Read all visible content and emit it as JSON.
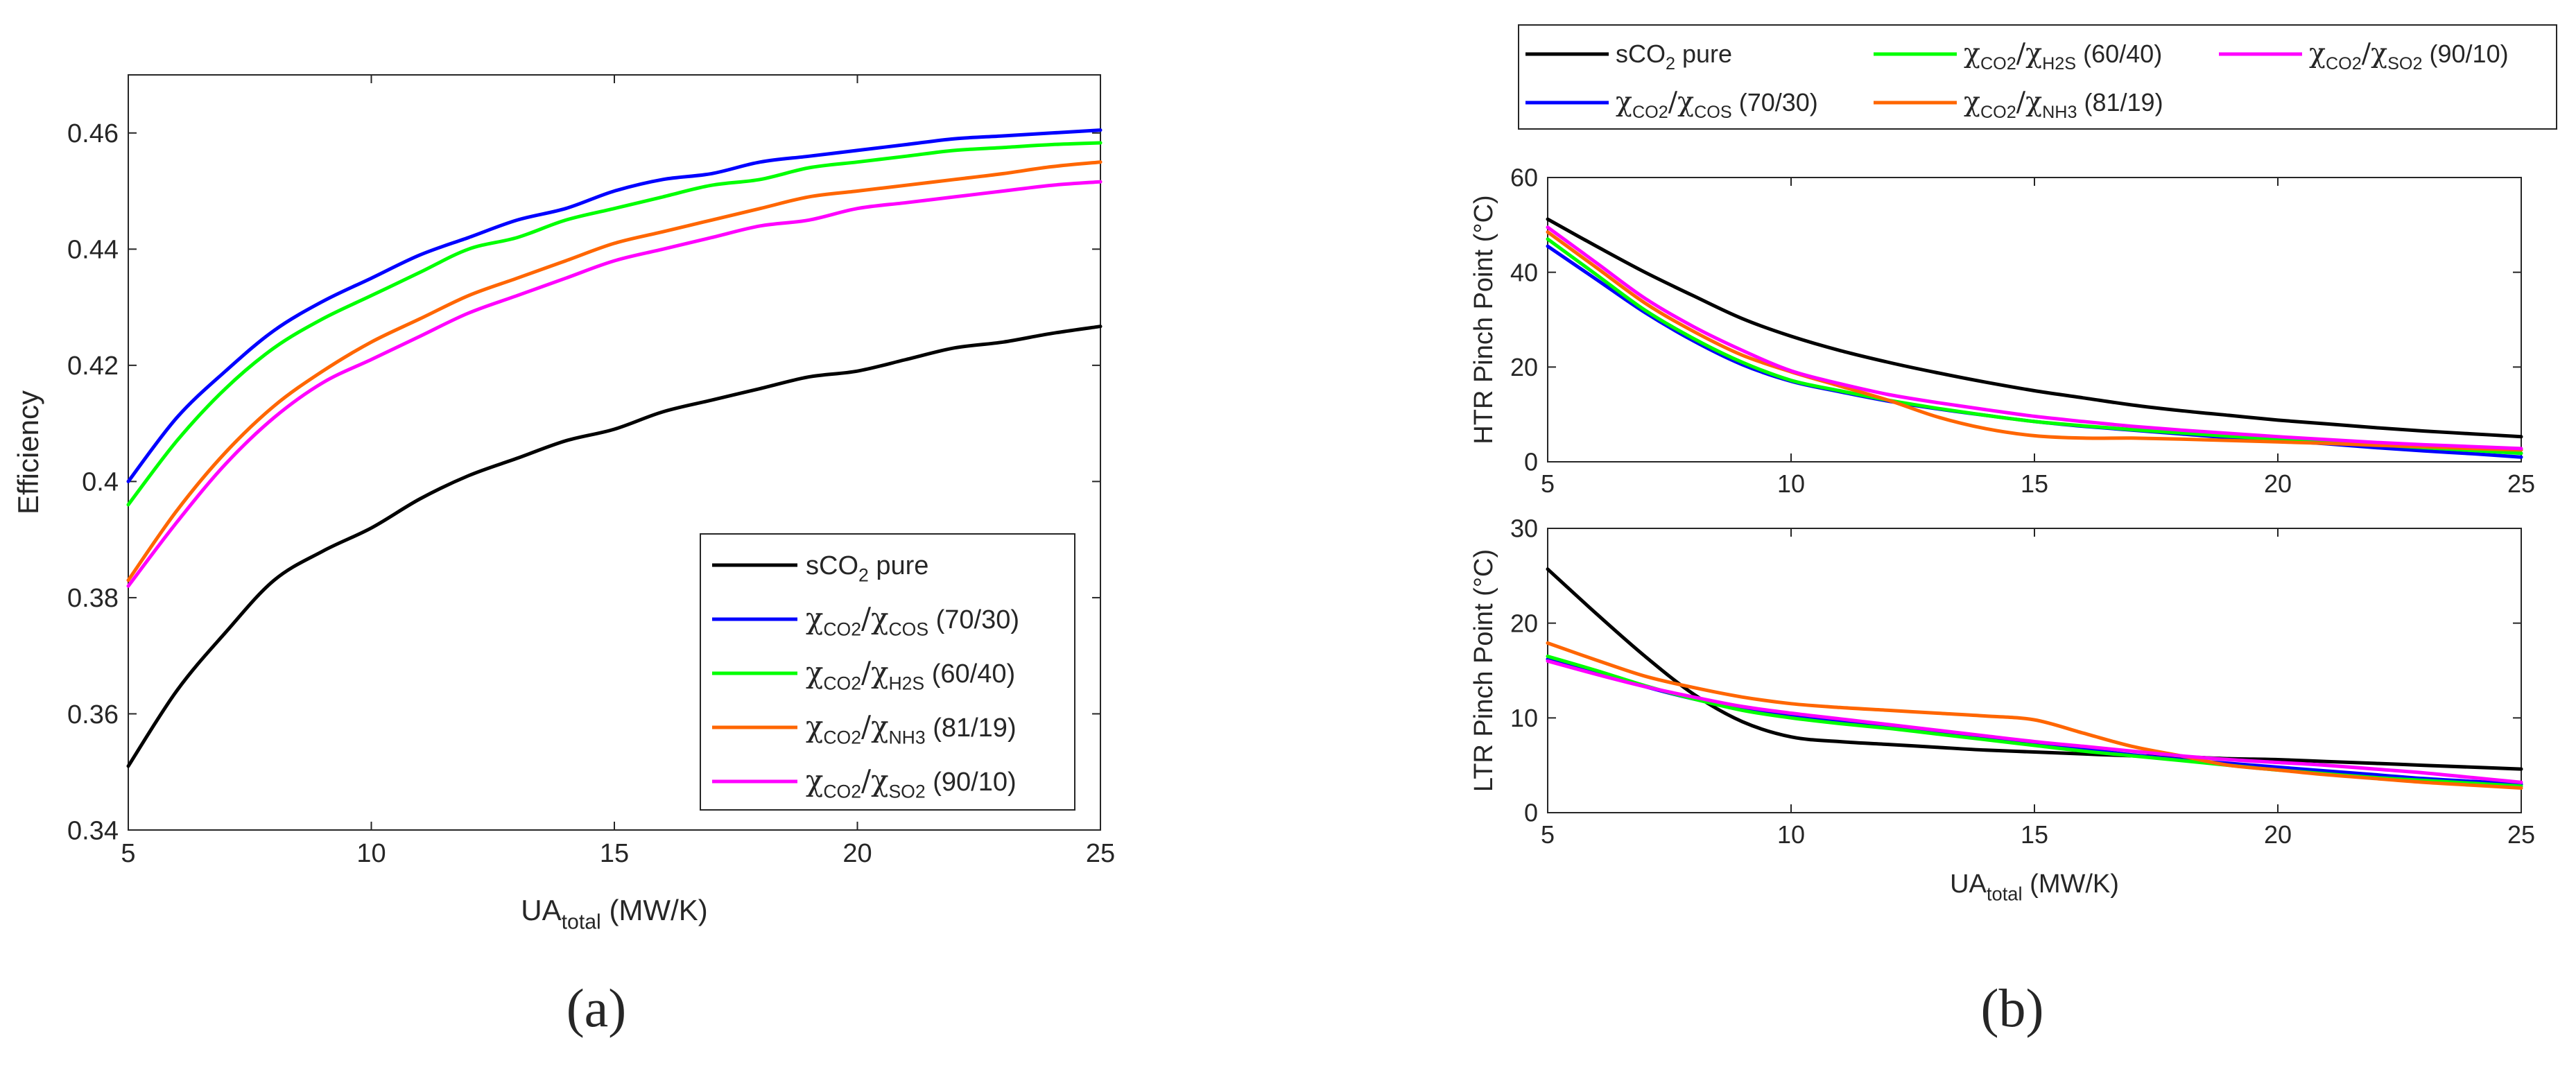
{
  "figure": {
    "panel_a_label": "(a)",
    "panel_b_label": "(b)"
  },
  "series_styles": [
    {
      "key": "pure",
      "color": "#000000"
    },
    {
      "key": "cos",
      "color": "#0000FF"
    },
    {
      "key": "h2s",
      "color": "#00FF00"
    },
    {
      "key": "nh3",
      "color": "#FF6600"
    },
    {
      "key": "so2",
      "color": "#FF00FF"
    }
  ],
  "legend_entries": [
    {
      "key": "pure",
      "text": "sCO",
      "sub": "2",
      "tail": " pure",
      "style": "pure"
    },
    {
      "key": "cos",
      "chi1": "χ",
      "sub1": "CO2",
      "chi2": "/χ",
      "sub2": "COS",
      "tail": " (70/30)",
      "style": "mixture"
    },
    {
      "key": "h2s",
      "chi1": "χ",
      "sub1": "CO2",
      "chi2": "/χ",
      "sub2": "H2S",
      "tail": " (60/40)",
      "style": "mixture"
    },
    {
      "key": "nh3",
      "chi1": "χ",
      "sub1": "CO2",
      "chi2": "/χ",
      "sub2": "NH3",
      "tail": " (81/19)",
      "style": "mixture"
    },
    {
      "key": "so2",
      "chi1": "χ",
      "sub1": "CO2",
      "chi2": "/χ",
      "sub2": "SO2",
      "tail": " (90/10)",
      "style": "mixture"
    }
  ],
  "chart_data": [
    {
      "id": "a",
      "type": "line",
      "xlabel": "UA",
      "xlabel_sub": "total",
      "xlabel_tail": " (MW/K)",
      "ylabel": "Efficiency",
      "xlim": [
        5,
        25
      ],
      "ylim": [
        0.34,
        0.47
      ],
      "xticks": [
        5,
        10,
        15,
        20,
        25
      ],
      "yticks": [
        0.34,
        0.36,
        0.38,
        0.4,
        0.42,
        0.44,
        0.46
      ],
      "ytick_labels": [
        "0.34",
        "0.36",
        "0.38",
        "0.4",
        "0.42",
        "0.44",
        "0.46"
      ],
      "legend_location": "bottom-right",
      "x": [
        5,
        6,
        7,
        8,
        9,
        10,
        11,
        12,
        13,
        14,
        15,
        16,
        17,
        18,
        19,
        20,
        21,
        22,
        23,
        24,
        25
      ],
      "series": [
        {
          "key": "pure",
          "values": [
            0.351,
            0.364,
            0.374,
            0.383,
            0.388,
            0.392,
            0.397,
            0.401,
            0.404,
            0.407,
            0.409,
            0.412,
            0.414,
            0.416,
            0.418,
            0.419,
            0.421,
            0.423,
            0.424,
            0.4255,
            0.4267
          ]
        },
        {
          "key": "cos",
          "values": [
            0.4,
            0.411,
            0.419,
            0.426,
            0.431,
            0.435,
            0.439,
            0.442,
            0.445,
            0.447,
            0.45,
            0.452,
            0.453,
            0.455,
            0.456,
            0.457,
            0.458,
            0.459,
            0.4595,
            0.46,
            0.4605
          ]
        },
        {
          "key": "h2s",
          "values": [
            0.396,
            0.407,
            0.416,
            0.423,
            0.428,
            0.432,
            0.436,
            0.44,
            0.442,
            0.445,
            0.447,
            0.449,
            0.451,
            0.452,
            0.454,
            0.455,
            0.456,
            0.457,
            0.4575,
            0.458,
            0.4583
          ]
        },
        {
          "key": "nh3",
          "values": [
            0.383,
            0.395,
            0.405,
            0.413,
            0.419,
            0.424,
            0.428,
            0.432,
            0.435,
            0.438,
            0.441,
            0.443,
            0.445,
            0.447,
            0.449,
            0.45,
            0.451,
            0.452,
            0.453,
            0.4542,
            0.455
          ]
        },
        {
          "key": "so2",
          "values": [
            0.382,
            0.393,
            0.403,
            0.411,
            0.417,
            0.421,
            0.425,
            0.429,
            0.432,
            0.435,
            0.438,
            0.44,
            0.442,
            0.444,
            0.445,
            0.447,
            0.448,
            0.449,
            0.45,
            0.451,
            0.4516
          ]
        }
      ]
    },
    {
      "id": "b-top",
      "type": "line",
      "ylabel": "HTR Pinch Point (°C)",
      "xlim": [
        5,
        25
      ],
      "ylim": [
        0,
        60
      ],
      "xticks": [
        5,
        10,
        15,
        20,
        25
      ],
      "yticks": [
        0,
        20,
        40,
        60
      ],
      "ytick_labels": [
        "0",
        "20",
        "40",
        "60"
      ],
      "legend_location": "top (outside)",
      "x": [
        5,
        6,
        7,
        8,
        9,
        10,
        11,
        12,
        13,
        14,
        15,
        16,
        17,
        18,
        19,
        20,
        21,
        22,
        23,
        24,
        25
      ],
      "series": [
        {
          "key": "pure",
          "values": [
            51.2,
            45.5,
            40,
            35,
            30.2,
            26.5,
            23.5,
            21,
            18.8,
            16.8,
            15,
            13.5,
            12,
            10.8,
            9.8,
            8.8,
            8,
            7.2,
            6.5,
            5.9,
            5.3
          ]
        },
        {
          "key": "cos",
          "values": [
            45.5,
            38.5,
            31.5,
            25.5,
            20.5,
            17,
            14.8,
            12.8,
            11.2,
            9.8,
            8.5,
            7.5,
            6.7,
            5.9,
            5.1,
            4.5,
            3.8,
            3,
            2.3,
            1.7,
            1
          ]
        },
        {
          "key": "h2s",
          "values": [
            47,
            39.5,
            32,
            26,
            21,
            17.2,
            15,
            13,
            11.3,
            9.8,
            8.5,
            7.6,
            6.8,
            6.1,
            5.4,
            4.8,
            4.2,
            3.6,
            3,
            2.4,
            1.8
          ]
        },
        {
          "key": "nh3",
          "values": [
            48.5,
            41,
            33.5,
            27.5,
            22.5,
            19,
            16,
            13,
            9.5,
            7,
            5.5,
            5,
            5,
            4.8,
            4.5,
            4.2,
            3.9,
            3.5,
            3.2,
            2.8,
            2.5
          ]
        },
        {
          "key": "so2",
          "values": [
            49.5,
            42,
            34.5,
            28.5,
            23.5,
            19.2,
            16.5,
            14.2,
            12.5,
            11,
            9.6,
            8.5,
            7.5,
            6.7,
            6,
            5.3,
            4.7,
            4.1,
            3.6,
            3.2,
            2.8
          ]
        }
      ]
    },
    {
      "id": "b-bottom",
      "type": "line",
      "xlabel": "UA",
      "xlabel_sub": "total",
      "xlabel_tail": " (MW/K)",
      "ylabel": "LTR Pinch Point (°C)",
      "xlim": [
        5,
        25
      ],
      "ylim": [
        0,
        30
      ],
      "xticks": [
        5,
        10,
        15,
        20,
        25
      ],
      "yticks": [
        0,
        10,
        20,
        30
      ],
      "ytick_labels": [
        "0",
        "10",
        "20",
        "30"
      ],
      "x": [
        5,
        6,
        7,
        8,
        9,
        10,
        11,
        12,
        13,
        14,
        15,
        16,
        17,
        18,
        19,
        20,
        21,
        22,
        23,
        24,
        25
      ],
      "series": [
        {
          "key": "pure",
          "values": [
            25.7,
            21,
            16.5,
            12.5,
            9.6,
            8,
            7.5,
            7.2,
            6.9,
            6.6,
            6.4,
            6.2,
            6,
            5.9,
            5.7,
            5.6,
            5.4,
            5.2,
            5,
            4.8,
            4.6
          ]
        },
        {
          "key": "cos",
          "values": [
            16.2,
            14.8,
            13.3,
            12,
            11,
            10.2,
            9.6,
            9.1,
            8.5,
            7.9,
            7.3,
            6.7,
            6.1,
            5.6,
            5.2,
            4.8,
            4.4,
            4,
            3.6,
            3.3,
            3
          ]
        },
        {
          "key": "h2s",
          "values": [
            16.5,
            15,
            13.4,
            12,
            10.8,
            10,
            9.4,
            8.9,
            8.3,
            7.7,
            7.1,
            6.5,
            6,
            5.5,
            5,
            4.5,
            4.1,
            3.7,
            3.4,
            3.1,
            2.8
          ]
        },
        {
          "key": "nh3",
          "values": [
            17.9,
            16.1,
            14.4,
            13.2,
            12.2,
            11.5,
            11.1,
            10.8,
            10.5,
            10.2,
            9.8,
            8.4,
            7,
            6,
            5,
            4.5,
            4,
            3.6,
            3.2,
            2.9,
            2.6
          ]
        },
        {
          "key": "so2",
          "values": [
            16,
            14.6,
            13.3,
            12.2,
            11.2,
            10.5,
            9.9,
            9.3,
            8.7,
            8.1,
            7.5,
            7,
            6.5,
            6,
            5.6,
            5.3,
            5,
            4.6,
            4.2,
            3.7,
            3.2
          ]
        }
      ]
    }
  ]
}
